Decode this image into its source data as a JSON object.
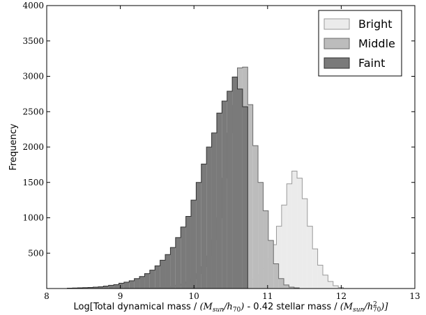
{
  "chart_data": {
    "type": "histogram",
    "title": "",
    "xlabel": "Log[Total dynamical mass / (M_sun/h_70) - 0.42 stellar mass / (M_sun/h_70^2)]",
    "xlabel_parts": {
      "a": "Log[Total dynamical mass / ",
      "b": "(M",
      "c": "sun",
      "d": "/h",
      "e": "70",
      "f": ")",
      "g": " - 0.42 stellar mass / ",
      "h": "(M",
      "i": "sun",
      "j": "/h",
      "k": "2",
      "l": "70",
      "m": ")]"
    },
    "ylabel": "Frequency",
    "xlim": [
      8,
      13
    ],
    "ylim": [
      0,
      4000
    ],
    "x_ticks": [
      "8",
      "9",
      "10",
      "11",
      "12",
      "13"
    ],
    "y_ticks": [
      "500",
      "1000",
      "1500",
      "2000",
      "2500",
      "3000",
      "3500",
      "4000"
    ],
    "legend_position": "top-right",
    "bin_width": 0.07,
    "series": [
      {
        "name": "Bright",
        "fill": "#ebebeb",
        "stroke": "#9a9a9a",
        "bins_start": 10.0,
        "counts": [
          0,
          5,
          5,
          10,
          10,
          15,
          20,
          30,
          40,
          60,
          90,
          130,
          190,
          280,
          420,
          620,
          880,
          1180,
          1480,
          1660,
          1560,
          1270,
          880,
          560,
          330,
          190,
          100,
          40,
          15,
          0
        ]
      },
      {
        "name": "Middle",
        "fill": "#bcbcbc",
        "stroke": "#6a6a6a",
        "bins_start": 9.4,
        "counts": [
          5,
          10,
          15,
          20,
          30,
          45,
          65,
          95,
          140,
          210,
          310,
          460,
          690,
          1000,
          1560,
          2200,
          2590,
          3120,
          3130,
          2600,
          2020,
          1500,
          1100,
          680,
          350,
          140,
          50,
          20,
          10,
          0
        ]
      },
      {
        "name": "Faint",
        "fill": "#7a7a7a",
        "stroke": "#303030",
        "bins_start": 8.28,
        "counts": [
          5,
          8,
          10,
          12,
          15,
          20,
          25,
          35,
          45,
          55,
          75,
          90,
          110,
          140,
          170,
          210,
          260,
          320,
          400,
          480,
          580,
          720,
          870,
          1020,
          1250,
          1500,
          1760,
          2000,
          2200,
          2480,
          2650,
          2790,
          2990,
          2820,
          2570,
          0
        ]
      }
    ]
  }
}
